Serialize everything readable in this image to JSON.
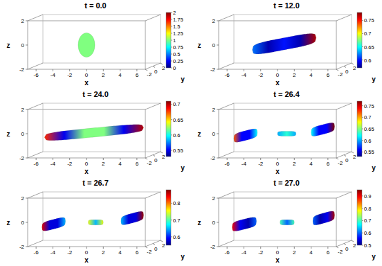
{
  "chart_data": [
    {
      "type": "3d",
      "title": "t = 0.0",
      "x_label": "x",
      "y_label": "y",
      "z_label": "z",
      "xlim": [
        -7,
        7
      ],
      "xticks": [
        -6,
        -4,
        -2,
        0,
        2,
        4,
        6
      ],
      "ylim": [
        -2,
        2
      ],
      "yticks": [
        -2,
        0,
        2
      ],
      "zlim": [
        -2,
        2
      ],
      "zticks": [
        -2,
        0,
        2
      ],
      "colorbar": {
        "range": [
          0,
          2
        ],
        "ticks": [
          0,
          0.25,
          0.5,
          0.75,
          1,
          1.25,
          1.5,
          1.75,
          2
        ]
      },
      "drops": [
        {
          "x": [
            -1,
            1
          ],
          "z": [
            0,
            0
          ],
          "radius": 1,
          "values": [
            1,
            1,
            1
          ]
        }
      ]
    },
    {
      "type": "3d",
      "title": "t = 12.0",
      "x_label": "x",
      "y_label": "y",
      "z_label": "z",
      "xlim": [
        -7,
        7
      ],
      "xticks": [
        -6,
        -4,
        -2,
        0,
        2,
        4,
        6
      ],
      "ylim": [
        -2,
        2
      ],
      "yticks": [
        -2,
        0,
        2
      ],
      "zlim": [
        -2,
        2
      ],
      "zticks": [
        -2,
        0,
        2
      ],
      "colorbar": {
        "range": [
          0.57,
          0.78
        ],
        "ticks": [
          0.6,
          0.65,
          0.7,
          0.75
        ]
      },
      "drops": [
        {
          "x": [
            -3,
            4.6
          ],
          "z": [
            -0.4,
            0.6
          ],
          "radius": 0.5,
          "values": [
            0.62,
            0.58,
            0.6,
            0.58,
            0.77
          ]
        }
      ]
    },
    {
      "type": "3d",
      "title": "t = 24.0",
      "x_label": "x",
      "y_label": "y",
      "z_label": "z",
      "xlim": [
        -7,
        7
      ],
      "xticks": [
        -6,
        -4,
        -2,
        0,
        2,
        4,
        6
      ],
      "ylim": [
        -2,
        2
      ],
      "yticks": [
        -2,
        0,
        2
      ],
      "zlim": [
        -2,
        2
      ],
      "zticks": [
        -2,
        0,
        2
      ],
      "colorbar": {
        "range": [
          0.53,
          0.71
        ],
        "ticks": [
          0.55,
          0.6,
          0.65,
          0.7
        ]
      },
      "drops": [
        {
          "x": [
            -5,
            6.8
          ],
          "z": [
            -0.3,
            0.5
          ],
          "radius": 0.38,
          "values": [
            0.68,
            0.55,
            0.62,
            0.62,
            0.55,
            0.7
          ]
        }
      ]
    },
    {
      "type": "3d",
      "title": "t = 26.4",
      "x_label": "x",
      "y_label": "y",
      "z_label": "z",
      "xlim": [
        -7,
        7
      ],
      "xticks": [
        -6,
        -4,
        -2,
        0,
        2,
        4,
        6
      ],
      "ylim": [
        -2,
        2
      ],
      "yticks": [
        -2,
        0,
        2
      ],
      "zlim": [
        -2,
        2
      ],
      "zticks": [
        -2,
        0,
        2
      ],
      "colorbar": {
        "range": [
          0.53,
          0.77
        ],
        "ticks": [
          0.55,
          0.6,
          0.65,
          0.7,
          0.75
        ]
      },
      "drops": [
        {
          "x": [
            -5.2,
            -2.4
          ],
          "z": [
            -0.4,
            0.1
          ],
          "radius": 0.4,
          "values": [
            0.72,
            0.56,
            0.56,
            0.62
          ]
        },
        {
          "x": [
            0,
            2.2
          ],
          "z": [
            0,
            0
          ],
          "radius": 0.2,
          "values": [
            0.6,
            0.63,
            0.6
          ]
        },
        {
          "x": [
            4,
            6.8
          ],
          "z": [
            0.1,
            0.6
          ],
          "radius": 0.4,
          "values": [
            0.62,
            0.56,
            0.56,
            0.77
          ]
        }
      ]
    },
    {
      "type": "3d",
      "title": "t = 26.7",
      "x_label": "x",
      "y_label": "y",
      "z_label": "z",
      "xlim": [
        -7,
        7
      ],
      "xticks": [
        -6,
        -4,
        -2,
        0,
        2,
        4,
        6
      ],
      "ylim": [
        -2,
        2
      ],
      "yticks": [
        -2,
        0,
        2
      ],
      "zlim": [
        -2,
        2
      ],
      "zticks": [
        -2,
        0,
        2
      ],
      "colorbar": {
        "range": [
          0.55,
          0.88
        ],
        "ticks": [
          0.6,
          0.7,
          0.8
        ]
      },
      "drops": [
        {
          "x": [
            -5.3,
            -2.5
          ],
          "z": [
            -0.4,
            0.1
          ],
          "radius": 0.4,
          "values": [
            0.85,
            0.58,
            0.58,
            0.65
          ]
        },
        {
          "x": [
            0.2,
            2
          ],
          "z": [
            0,
            0
          ],
          "radius": 0.22,
          "values": [
            0.75,
            0.65,
            0.75
          ]
        },
        {
          "x": [
            4.1,
            6.8
          ],
          "z": [
            0.1,
            0.6
          ],
          "radius": 0.4,
          "values": [
            0.65,
            0.58,
            0.58,
            0.87
          ]
        }
      ]
    },
    {
      "type": "3d",
      "title": "t = 27.0",
      "x_label": "x",
      "y_label": "y",
      "z_label": "z",
      "xlim": [
        -7,
        7
      ],
      "xticks": [
        -6,
        -4,
        -2,
        0,
        2,
        4,
        6
      ],
      "ylim": [
        -2,
        2
      ],
      "yticks": [
        -2,
        0,
        2
      ],
      "zlim": [
        -2,
        2
      ],
      "zticks": [
        -2,
        0,
        2
      ],
      "colorbar": {
        "range": [
          0.5,
          0.95
        ],
        "ticks": [
          0.5,
          0.6,
          0.7,
          0.8,
          0.9
        ]
      },
      "drops": [
        {
          "x": [
            -5.4,
            -2.5
          ],
          "z": [
            -0.4,
            0.1
          ],
          "radius": 0.42,
          "values": [
            0.9,
            0.55,
            0.52,
            0.6
          ]
        },
        {
          "x": [
            0.3,
            2
          ],
          "z": [
            0,
            0
          ],
          "radius": 0.22,
          "values": [
            0.7,
            0.6,
            0.7
          ]
        },
        {
          "x": [
            4.2,
            6.8
          ],
          "z": [
            0.1,
            0.6
          ],
          "radius": 0.42,
          "values": [
            0.6,
            0.52,
            0.55,
            0.93
          ]
        }
      ]
    }
  ]
}
